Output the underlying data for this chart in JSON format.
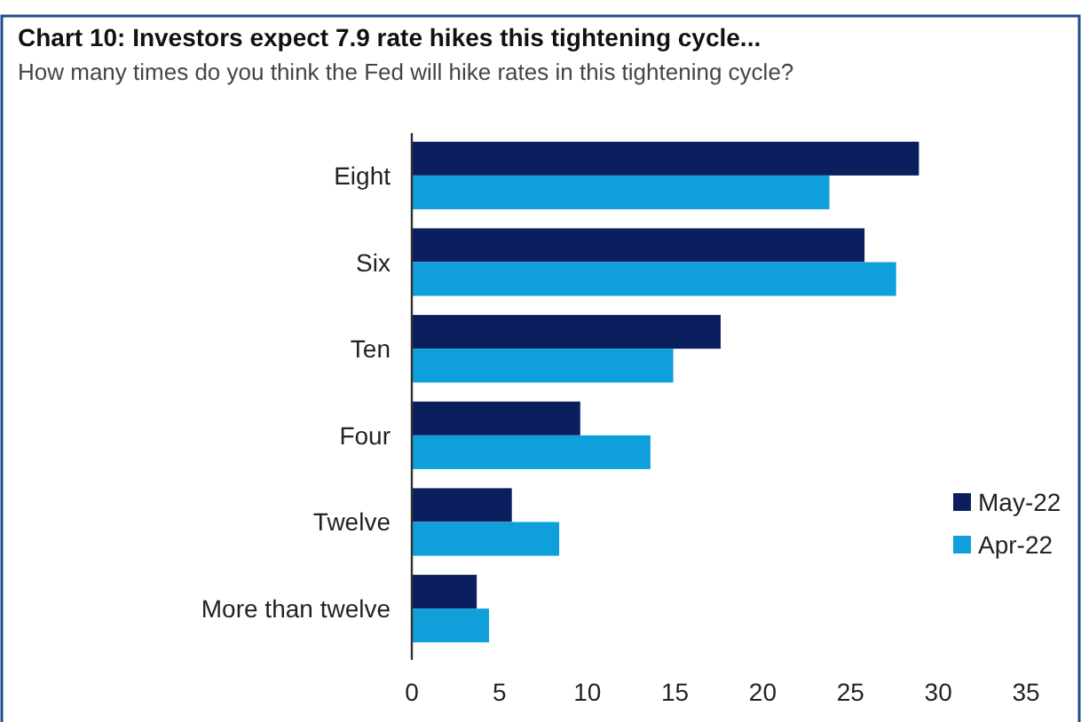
{
  "chart_data": {
    "type": "bar",
    "orientation": "horizontal",
    "title": "Chart 10: Investors expect 7.9 rate hikes this tightening cycle...",
    "subtitle": "How many times do you think the Fed will hike rates in this tightening cycle?",
    "categories": [
      "Eight",
      "Six",
      "Ten",
      "Four",
      "Twelve",
      "More than twelve"
    ],
    "series": [
      {
        "name": "May-22",
        "color": "#0b1f5e",
        "values": [
          28.9,
          25.8,
          17.6,
          9.6,
          5.7,
          3.7
        ]
      },
      {
        "name": "Apr-22",
        "color": "#0fa0dc",
        "values": [
          23.8,
          27.6,
          14.9,
          13.6,
          8.4,
          4.4
        ]
      }
    ],
    "xlim": [
      0,
      35
    ],
    "xticks": [
      0,
      5,
      10,
      15,
      20,
      25,
      30,
      35
    ],
    "grid": false,
    "legend": "right"
  }
}
